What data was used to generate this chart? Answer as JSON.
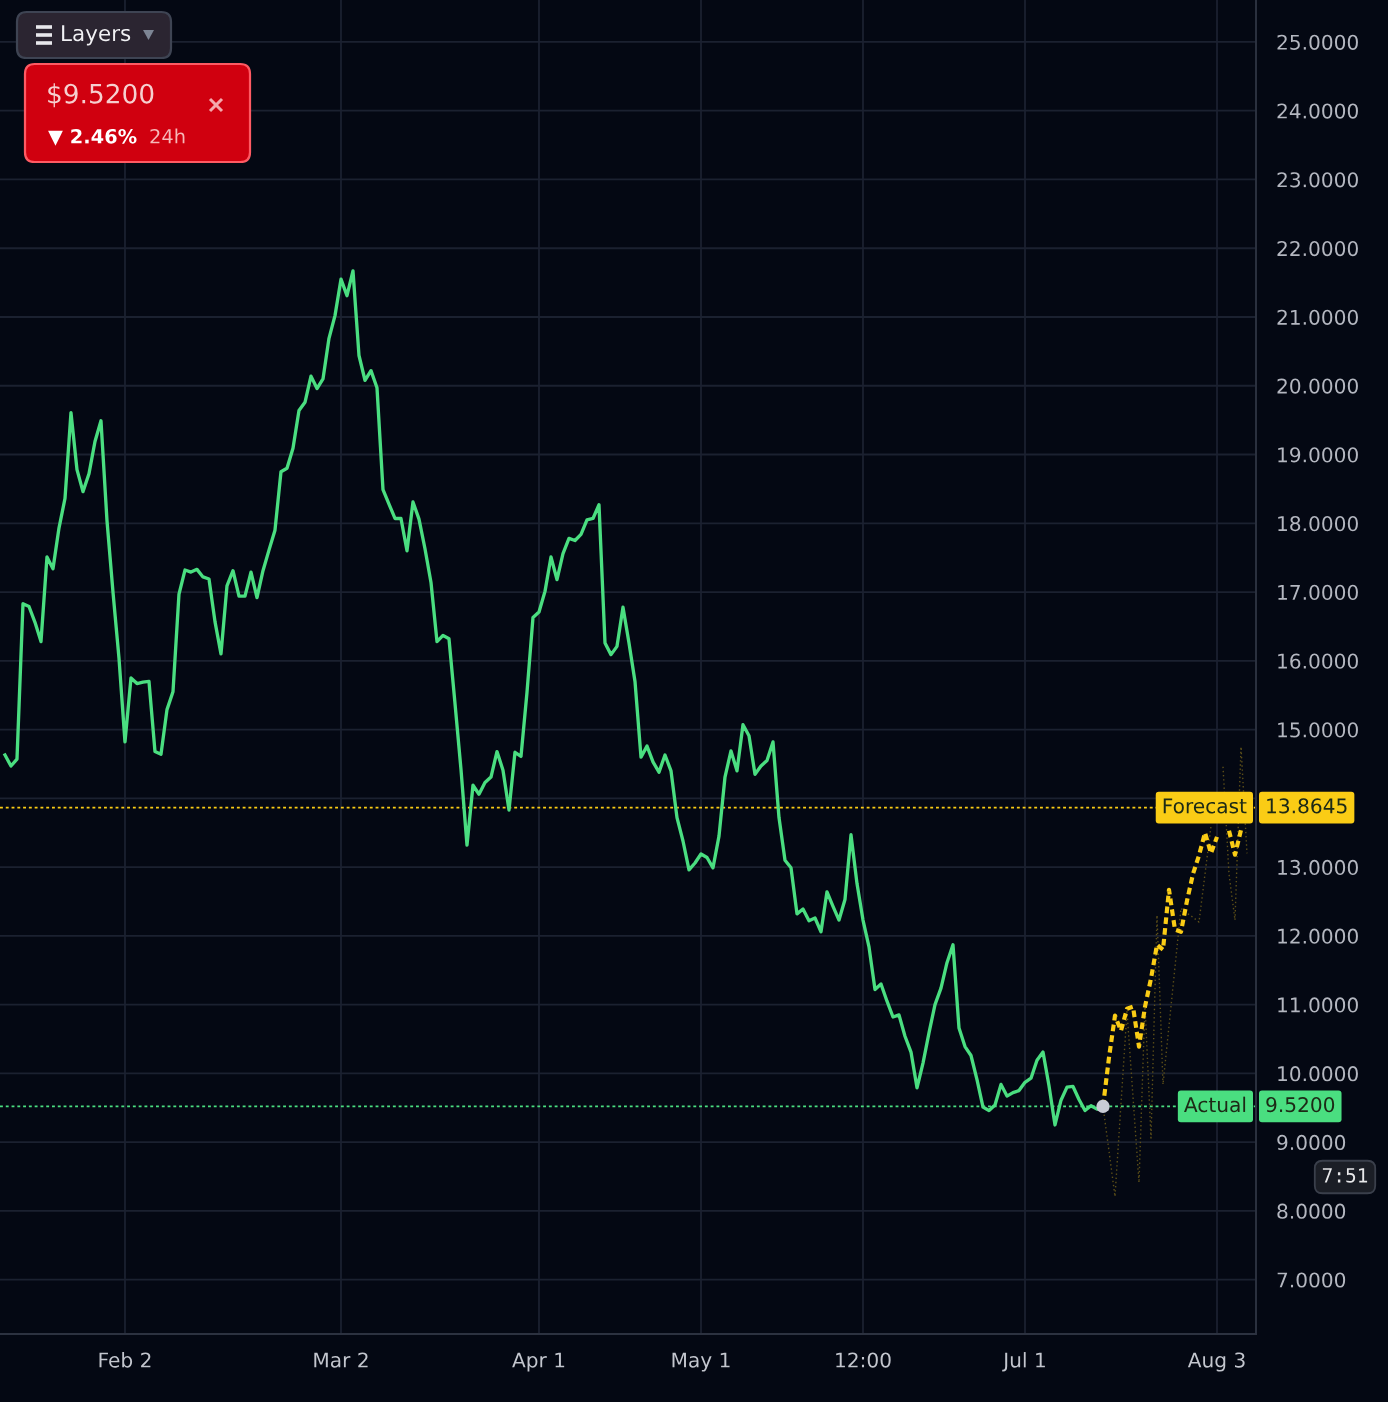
{
  "chart_data": {
    "type": "line",
    "categories": [
      null,
      null,
      null,
      null,
      null,
      null,
      null,
      null,
      null,
      null,
      null,
      null,
      null,
      null,
      null,
      null,
      null,
      null,
      null,
      null,
      "Feb 2",
      null,
      null,
      null,
      null,
      null,
      null,
      null,
      null,
      null,
      null,
      null,
      null,
      null,
      null,
      null,
      null,
      null,
      null,
      null,
      null,
      null,
      null,
      null,
      null,
      null,
      null,
      null,
      null,
      null,
      null,
      null,
      null,
      null,
      null,
      null,
      "Mar 2",
      null,
      null,
      null,
      null,
      null,
      null,
      null,
      null,
      null,
      null,
      null,
      null,
      null,
      null,
      null,
      null,
      null,
      null,
      null,
      null,
      null,
      null,
      null,
      null,
      null,
      null,
      null,
      null,
      null,
      null,
      null,
      null,
      "Apr 1",
      null,
      null,
      null,
      null,
      null,
      null,
      null,
      null,
      null,
      null,
      null,
      null,
      null,
      null,
      null,
      null,
      null,
      null,
      null,
      null,
      null,
      null,
      null,
      null,
      null,
      null,
      "May 1",
      null,
      null,
      null,
      null,
      null,
      null,
      null,
      null,
      null,
      null,
      null,
      null,
      null,
      null,
      null,
      null,
      null,
      null,
      null,
      null,
      null,
      null,
      null,
      null,
      null,
      null,
      "12:00",
      null,
      null,
      null,
      null,
      null,
      null,
      null,
      null,
      null,
      null,
      null,
      null,
      null,
      null,
      null,
      null,
      null,
      null,
      null,
      null,
      null,
      null,
      null,
      null,
      null,
      null,
      "Jul 1",
      null,
      null,
      null,
      null,
      null,
      null,
      null,
      null,
      null,
      null,
      null,
      null,
      null,
      null,
      null,
      null,
      null,
      null,
      null,
      null,
      null,
      null,
      null,
      null,
      null,
      null,
      null,
      null,
      null,
      null,
      null,
      "Aug 3",
      null,
      null,
      null,
      null,
      null
    ],
    "ylim": [
      6.21,
      25.61
    ],
    "yticks": [
      {
        "value": 7,
        "label": "7.0000"
      },
      {
        "value": 8,
        "label": "8.0000"
      },
      {
        "value": 9,
        "label": "9.0000"
      },
      {
        "value": 10,
        "label": "10.0000"
      },
      {
        "value": 11,
        "label": "11.0000"
      },
      {
        "value": 12,
        "label": "12.0000"
      },
      {
        "value": 13,
        "label": "13.0000"
      },
      {
        "value": 14,
        "label": null
      },
      {
        "value": 15,
        "label": "15.0000"
      },
      {
        "value": 16,
        "label": "16.0000"
      },
      {
        "value": 17,
        "label": "17.0000"
      },
      {
        "value": 18,
        "label": "18.0000"
      },
      {
        "value": 19,
        "label": "19.0000"
      },
      {
        "value": 20,
        "label": "20.0000"
      },
      {
        "value": 21,
        "label": "21.0000"
      },
      {
        "value": 22,
        "label": "22.0000"
      },
      {
        "value": 23,
        "label": "23.0000"
      },
      {
        "value": 24,
        "label": "24.0000"
      },
      {
        "value": 25,
        "label": "25.0000"
      }
    ],
    "grid": true,
    "series": [
      {
        "color": "#4ade80",
        "line_style": "solid",
        "marker": "none",
        "values": [
          14.63,
          14.47,
          14.57,
          16.83,
          16.79,
          16.56,
          16.28,
          17.51,
          17.34,
          17.93,
          18.36,
          19.61,
          18.78,
          18.46,
          18.72,
          19.19,
          19.49,
          18.04,
          17.0,
          16.04,
          14.82,
          15.75,
          15.67,
          15.69,
          15.7,
          14.68,
          14.64,
          15.29,
          15.55,
          16.97,
          17.32,
          17.29,
          17.33,
          17.22,
          17.19,
          16.57,
          16.1,
          17.09,
          17.31,
          16.94,
          16.94,
          17.29,
          16.92,
          17.31,
          17.61,
          17.9,
          18.75,
          18.8,
          19.09,
          19.64,
          19.76,
          20.14,
          19.96,
          20.1,
          20.69,
          21.02,
          21.55,
          21.31,
          21.67,
          20.44,
          20.08,
          20.22,
          19.97,
          18.49,
          18.28,
          18.07,
          18.07,
          17.6,
          18.31,
          18.06,
          17.63,
          17.14,
          16.28,
          16.37,
          16.32,
          15.38,
          14.42,
          13.32,
          14.19,
          14.06,
          14.23,
          14.31,
          14.68,
          14.41,
          13.83,
          14.67,
          14.61,
          15.54,
          16.63,
          16.71,
          17.01,
          17.51,
          17.18,
          17.56,
          17.78,
          17.75,
          17.84,
          18.05,
          18.07,
          18.27,
          16.26,
          16.09,
          16.21,
          16.78,
          16.26,
          15.7,
          14.6,
          14.76,
          14.53,
          14.38,
          14.63,
          14.4,
          13.72,
          13.38,
          12.96,
          13.06,
          13.19,
          13.14,
          12.99,
          13.45,
          14.31,
          14.69,
          14.4,
          15.07,
          14.91,
          14.35,
          14.47,
          14.55,
          14.82,
          13.72,
          13.1,
          12.99,
          12.32,
          12.39,
          12.22,
          12.26,
          12.06,
          12.64,
          12.43,
          12.23,
          12.53,
          13.47,
          12.76,
          12.23,
          11.84,
          11.22,
          11.3,
          11.05,
          10.82,
          10.85,
          10.54,
          10.31,
          9.79,
          10.15,
          10.59,
          11.0,
          11.24,
          11.61,
          11.87,
          10.66,
          10.39,
          10.26,
          9.91,
          9.51,
          9.46,
          9.54,
          9.84,
          9.67,
          9.72,
          9.75,
          9.87,
          9.93,
          10.19,
          10.31,
          9.82,
          9.25,
          9.61,
          9.8,
          9.81,
          9.62,
          9.46,
          9.53,
          9.48,
          9.52,
          null,
          null,
          null,
          null,
          null,
          null,
          null,
          null,
          null,
          null,
          null,
          null,
          null,
          null,
          null,
          null,
          null,
          null,
          null,
          null,
          null,
          null,
          null,
          null
        ]
      },
      {
        "color": "#5e5018",
        "line_style": "dotted",
        "marker": "none",
        "values": [
          null,
          null,
          null,
          null,
          null,
          null,
          null,
          null,
          null,
          null,
          null,
          null,
          null,
          null,
          null,
          null,
          null,
          null,
          null,
          null,
          null,
          null,
          null,
          null,
          null,
          null,
          null,
          null,
          null,
          null,
          null,
          null,
          null,
          null,
          null,
          null,
          null,
          null,
          null,
          null,
          null,
          null,
          null,
          null,
          null,
          null,
          null,
          null,
          null,
          null,
          null,
          null,
          null,
          null,
          null,
          null,
          null,
          null,
          null,
          null,
          null,
          null,
          null,
          null,
          null,
          null,
          null,
          null,
          null,
          null,
          null,
          null,
          null,
          null,
          null,
          null,
          null,
          null,
          null,
          null,
          null,
          null,
          null,
          null,
          null,
          null,
          null,
          null,
          null,
          null,
          null,
          null,
          null,
          null,
          null,
          null,
          null,
          null,
          null,
          null,
          null,
          null,
          null,
          null,
          null,
          null,
          null,
          null,
          null,
          null,
          null,
          null,
          null,
          null,
          null,
          null,
          null,
          null,
          null,
          null,
          null,
          null,
          null,
          null,
          null,
          null,
          null,
          null,
          null,
          null,
          null,
          null,
          null,
          null,
          null,
          null,
          null,
          null,
          null,
          null,
          null,
          null,
          null,
          null,
          null,
          null,
          null,
          null,
          null,
          null,
          null,
          null,
          null,
          null,
          null,
          null,
          null,
          null,
          null,
          null,
          null,
          null,
          null,
          null,
          null,
          null,
          null,
          null,
          null,
          null,
          null,
          null,
          null,
          null,
          null,
          null,
          null,
          null,
          null,
          null,
          null,
          null,
          null,
          9.52,
          8.87,
          8.21,
          9.56,
          10.9,
          9.66,
          8.41,
          11.0,
          9.06,
          12.3,
          9.84,
          10.69,
          11.55,
          12.4,
          12.33,
          12.27,
          12.2,
          12.9,
          13.6,
          null,
          14.46,
          12.9,
          12.23,
          14.75,
          13.2
        ]
      },
      {
        "color": "#facc15",
        "line_style": "dashed",
        "marker": "none",
        "values": [
          null,
          null,
          null,
          null,
          null,
          null,
          null,
          null,
          null,
          null,
          null,
          null,
          null,
          null,
          null,
          null,
          null,
          null,
          null,
          null,
          null,
          null,
          null,
          null,
          null,
          null,
          null,
          null,
          null,
          null,
          null,
          null,
          null,
          null,
          null,
          null,
          null,
          null,
          null,
          null,
          null,
          null,
          null,
          null,
          null,
          null,
          null,
          null,
          null,
          null,
          null,
          null,
          null,
          null,
          null,
          null,
          null,
          null,
          null,
          null,
          null,
          null,
          null,
          null,
          null,
          null,
          null,
          null,
          null,
          null,
          null,
          null,
          null,
          null,
          null,
          null,
          null,
          null,
          null,
          null,
          null,
          null,
          null,
          null,
          null,
          null,
          null,
          null,
          null,
          null,
          null,
          null,
          null,
          null,
          null,
          null,
          null,
          null,
          null,
          null,
          null,
          null,
          null,
          null,
          null,
          null,
          null,
          null,
          null,
          null,
          null,
          null,
          null,
          null,
          null,
          null,
          null,
          null,
          null,
          null,
          null,
          null,
          null,
          null,
          null,
          null,
          null,
          null,
          null,
          null,
          null,
          null,
          null,
          null,
          null,
          null,
          null,
          null,
          null,
          null,
          null,
          null,
          null,
          null,
          null,
          null,
          null,
          null,
          null,
          null,
          null,
          null,
          null,
          null,
          null,
          null,
          null,
          null,
          null,
          null,
          null,
          null,
          null,
          null,
          null,
          null,
          null,
          null,
          null,
          null,
          null,
          null,
          null,
          null,
          null,
          null,
          null,
          null,
          null,
          null,
          null,
          null,
          null,
          9.52,
          10.23,
          10.84,
          10.62,
          10.94,
          10.97,
          10.39,
          10.97,
          11.38,
          11.87,
          11.8,
          12.67,
          12.09,
          12.06,
          12.51,
          12.9,
          13.17,
          13.5,
          13.2,
          13.44,
          null,
          13.53,
          13.18,
          13.54,
          null
        ]
      },
      {
        "type": "scatter",
        "color": "#c9ccd6",
        "marker": "circle",
        "values": [
          null,
          null,
          null,
          null,
          null,
          null,
          null,
          null,
          null,
          null,
          null,
          null,
          null,
          null,
          null,
          null,
          null,
          null,
          null,
          null,
          null,
          null,
          null,
          null,
          null,
          null,
          null,
          null,
          null,
          null,
          null,
          null,
          null,
          null,
          null,
          null,
          null,
          null,
          null,
          null,
          null,
          null,
          null,
          null,
          null,
          null,
          null,
          null,
          null,
          null,
          null,
          null,
          null,
          null,
          null,
          null,
          null,
          null,
          null,
          null,
          null,
          null,
          null,
          null,
          null,
          null,
          null,
          null,
          null,
          null,
          null,
          null,
          null,
          null,
          null,
          null,
          null,
          null,
          null,
          null,
          null,
          null,
          null,
          null,
          null,
          null,
          null,
          null,
          null,
          null,
          null,
          null,
          null,
          null,
          null,
          null,
          null,
          null,
          null,
          null,
          null,
          null,
          null,
          null,
          null,
          null,
          null,
          null,
          null,
          null,
          null,
          null,
          null,
          null,
          null,
          null,
          null,
          null,
          null,
          null,
          null,
          null,
          null,
          null,
          null,
          null,
          null,
          null,
          null,
          null,
          null,
          null,
          null,
          null,
          null,
          null,
          null,
          null,
          null,
          null,
          null,
          null,
          null,
          null,
          null,
          null,
          null,
          null,
          null,
          null,
          null,
          null,
          null,
          null,
          null,
          null,
          null,
          null,
          null,
          null,
          null,
          null,
          null,
          null,
          null,
          null,
          null,
          null,
          null,
          null,
          null,
          null,
          null,
          null,
          null,
          null,
          null,
          null,
          null,
          null,
          null,
          null,
          null,
          9.52,
          null,
          null,
          null,
          null,
          null,
          null,
          null,
          null,
          null,
          null,
          null,
          null,
          null,
          null,
          null,
          null,
          null,
          null,
          null,
          null,
          null,
          null,
          null,
          null
        ]
      }
    ],
    "ref_lines": [
      {
        "axis": "y",
        "value": 13.8645,
        "label": "Forecast",
        "color": "#facc15",
        "line_style": "dotted"
      },
      {
        "axis": "y",
        "value": 9.52,
        "label": "Actual",
        "color": "#4ade80",
        "line_style": "dotted"
      }
    ],
    "annotations": [
      "Layers",
      "$9.5200",
      "▼ 2.46%",
      "24h",
      "7:51",
      "13.8645",
      "9.5200"
    ]
  }
}
